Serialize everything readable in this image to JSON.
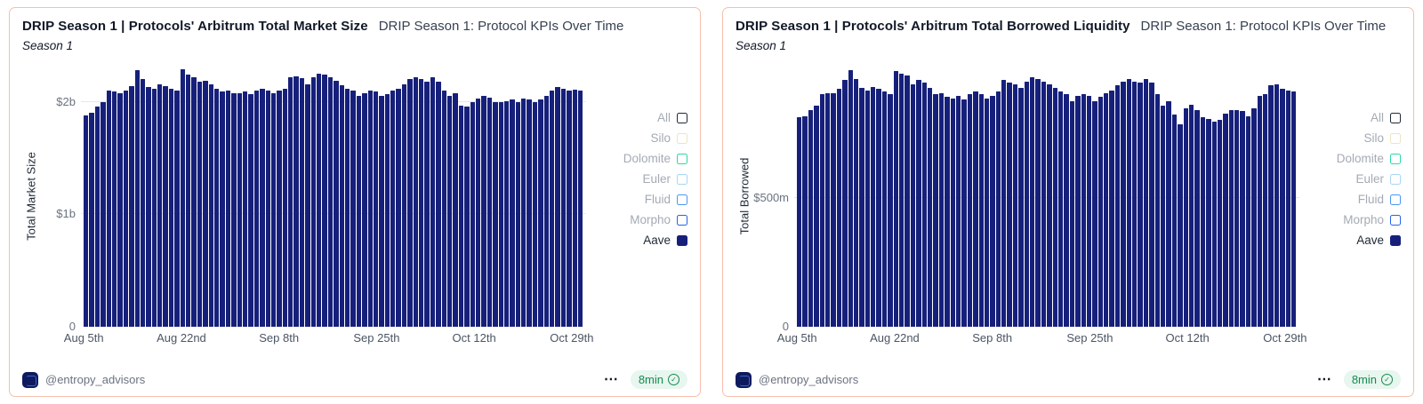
{
  "theme": {
    "bar_color": "#16207b",
    "card_border": "#f6bfab",
    "badge_bg": "#e7f6ee",
    "badge_text": "#178a50"
  },
  "cards": [
    {
      "title": "DRIP Season 1 | Protocols' Arbitrum Total Market Size",
      "subtitle": "DRIP Season 1: Protocol KPIs Over Time",
      "season_label": "Season 1",
      "legend": [
        {
          "label": "All",
          "box_color": "#1f2937",
          "filled": false,
          "label_color": "#a4aab4"
        },
        {
          "label": "Silo",
          "box_color": "#ece5c2",
          "filled": false,
          "label_color": "#a4aab4"
        },
        {
          "label": "Dolomite",
          "box_color": "#2bd9a7",
          "filled": false,
          "label_color": "#a4aab4"
        },
        {
          "label": "Euler",
          "box_color": "#a9d6f5",
          "filled": false,
          "label_color": "#a4aab4"
        },
        {
          "label": "Fluid",
          "box_color": "#4b96f3",
          "filled": false,
          "label_color": "#a4aab4"
        },
        {
          "label": "Morpho",
          "box_color": "#2563eb",
          "filled": false,
          "label_color": "#a4aab4"
        },
        {
          "label": "Aave",
          "box_color": "#16207b",
          "filled": true,
          "label_color": "#1f2937"
        }
      ],
      "footer": {
        "account": "@entropy_advisors",
        "menu": "⋯",
        "badge": "8min",
        "check": "✓"
      },
      "chart_data": {
        "type": "bar",
        "title": "DRIP Season 1 | Protocols' Arbitrum Total Market Size",
        "ylabel": "Total Market Size",
        "unit": "$ billions",
        "ymax": 2.33,
        "grid": "horizontal",
        "legend_position": "right",
        "yticks": [
          {
            "label": "$2b",
            "value": 2.0
          },
          {
            "label": "$1b",
            "value": 1.0
          },
          {
            "label": "0",
            "value": 0
          }
        ],
        "xticks": [
          {
            "label": "Aug 5th",
            "day_index": 0
          },
          {
            "label": "Aug 22nd",
            "day_index": 17
          },
          {
            "label": "Sep 8th",
            "day_index": 34
          },
          {
            "label": "Sep 25th",
            "day_index": 51
          },
          {
            "label": "Oct 12th",
            "day_index": 68
          },
          {
            "label": "Oct 29th",
            "day_index": 85
          }
        ],
        "series_name": "Aave",
        "values": [
          1.88,
          1.9,
          1.96,
          2.0,
          2.1,
          2.09,
          2.08,
          2.1,
          2.14,
          2.28,
          2.2,
          2.13,
          2.12,
          2.16,
          2.14,
          2.12,
          2.1,
          2.29,
          2.24,
          2.22,
          2.18,
          2.19,
          2.16,
          2.12,
          2.09,
          2.1,
          2.08,
          2.08,
          2.09,
          2.07,
          2.1,
          2.12,
          2.1,
          2.08,
          2.1,
          2.12,
          2.22,
          2.23,
          2.21,
          2.16,
          2.22,
          2.25,
          2.24,
          2.22,
          2.19,
          2.15,
          2.12,
          2.1,
          2.05,
          2.08,
          2.1,
          2.09,
          2.05,
          2.07,
          2.1,
          2.12,
          2.16,
          2.2,
          2.22,
          2.2,
          2.18,
          2.22,
          2.18,
          2.1,
          2.05,
          2.08,
          1.97,
          1.96,
          2.0,
          2.03,
          2.05,
          2.04,
          2.0,
          2.0,
          2.01,
          2.02,
          2.0,
          2.03,
          2.02,
          2.0,
          2.02,
          2.05,
          2.1,
          2.13,
          2.12,
          2.1,
          2.11,
          2.1
        ]
      }
    },
    {
      "title": "DRIP Season 1 | Protocols' Arbitrum Total Borrowed Liquidity",
      "subtitle": "DRIP Season 1: Protocol KPIs Over Time",
      "season_label": "Season 1",
      "legend": [
        {
          "label": "All",
          "box_color": "#1f2937",
          "filled": false,
          "label_color": "#a4aab4"
        },
        {
          "label": "Silo",
          "box_color": "#ece5c2",
          "filled": false,
          "label_color": "#a4aab4"
        },
        {
          "label": "Dolomite",
          "box_color": "#2bd9a7",
          "filled": false,
          "label_color": "#a4aab4"
        },
        {
          "label": "Euler",
          "box_color": "#a9d6f5",
          "filled": false,
          "label_color": "#a4aab4"
        },
        {
          "label": "Fluid",
          "box_color": "#4b96f3",
          "filled": false,
          "label_color": "#a4aab4"
        },
        {
          "label": "Morpho",
          "box_color": "#2563eb",
          "filled": false,
          "label_color": "#a4aab4"
        },
        {
          "label": "Aave",
          "box_color": "#16207b",
          "filled": true,
          "label_color": "#1f2937"
        }
      ],
      "footer": {
        "account": "@entropy_advisors",
        "menu": "⋯",
        "badge": "8min",
        "check": "✓"
      },
      "chart_data": {
        "type": "bar",
        "title": "DRIP Season 1 | Protocols' Arbitrum Total Borrowed Liquidity",
        "ylabel": "Total Borrowed",
        "unit": "$ millions",
        "ymax": 1020,
        "grid": "horizontal",
        "legend_position": "right",
        "yticks": [
          {
            "label": "$500m",
            "value": 500
          },
          {
            "label": "0",
            "value": 0
          }
        ],
        "xticks": [
          {
            "label": "Aug 5th",
            "day_index": 0
          },
          {
            "label": "Aug 22nd",
            "day_index": 17
          },
          {
            "label": "Sep 8th",
            "day_index": 34
          },
          {
            "label": "Sep 25th",
            "day_index": 51
          },
          {
            "label": "Oct 12th",
            "day_index": 68
          },
          {
            "label": "Oct 29th",
            "day_index": 85
          }
        ],
        "series_name": "Aave",
        "values": [
          815,
          820,
          845,
          860,
          905,
          910,
          908,
          925,
          960,
          1000,
          965,
          930,
          920,
          935,
          925,
          915,
          905,
          995,
          985,
          980,
          945,
          960,
          950,
          930,
          905,
          910,
          895,
          890,
          900,
          885,
          905,
          915,
          905,
          890,
          900,
          915,
          960,
          950,
          945,
          930,
          955,
          970,
          965,
          955,
          945,
          930,
          915,
          905,
          880,
          900,
          905,
          900,
          880,
          895,
          910,
          920,
          940,
          955,
          965,
          955,
          950,
          965,
          950,
          905,
          860,
          880,
          825,
          790,
          850,
          865,
          845,
          815,
          810,
          800,
          805,
          830,
          845,
          845,
          840,
          820,
          850,
          900,
          905,
          940,
          945,
          925,
          920,
          918
        ]
      }
    }
  ]
}
